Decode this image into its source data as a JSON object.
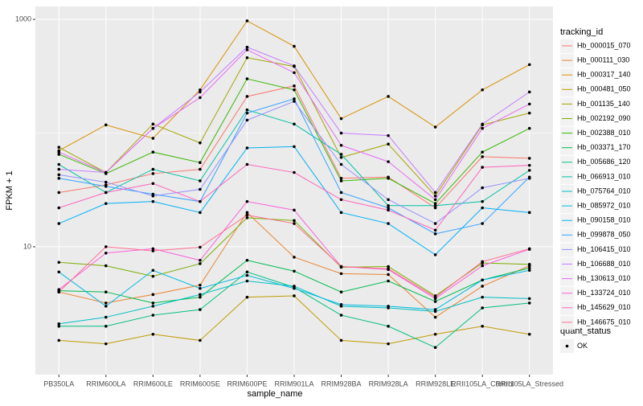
{
  "chart_data": {
    "type": "line",
    "x_label": "sample_name",
    "y_label": "FPKM + 1",
    "log_y": true,
    "grid": true,
    "categories": [
      "PB350LA",
      "RRIM600LA",
      "RRIM600LE",
      "RRIM600SE",
      "RRIM600PE",
      "RRIM901LA",
      "RRIM928BA",
      "RRIM928LA",
      "RRIM928LE",
      "RRII105LA_Control",
      "RRII105LA_Stressed"
    ],
    "ylim": [
      0.75,
      1300
    ],
    "yticks": [
      10,
      1000
    ],
    "legend_title": "tracking_id",
    "point_legend_title": "quant_status",
    "point_legend_label": "OK",
    "point_color": "#000000",
    "series": [
      {
        "name": "Hb_000015_070",
        "color": "#F8766D",
        "values": [
          30,
          35,
          44,
          48,
          210,
          260,
          40,
          41,
          22,
          62,
          60
        ]
      },
      {
        "name": "Hb_000111_030",
        "color": "#EA8331",
        "values": [
          4.0,
          3.2,
          3.8,
          4.6,
          20,
          8.1,
          5.8,
          5.7,
          2.4,
          4.5,
          6.8
        ]
      },
      {
        "name": "Hb_000317_140",
        "color": "#D89000",
        "values": [
          70,
          118,
          90,
          240,
          970,
          580,
          134,
          210,
          113,
          240,
          400
        ]
      },
      {
        "name": "Hb_000481_050",
        "color": "#C09B00",
        "values": [
          1.5,
          1.4,
          1.7,
          1.5,
          3.6,
          3.7,
          1.5,
          1.4,
          1.7,
          2.0,
          1.7
        ]
      },
      {
        "name": "Hb_001135_140",
        "color": "#A3A500",
        "values": [
          75,
          45,
          120,
          82,
          460,
          385,
          61,
          80,
          28,
          118,
          150
        ]
      },
      {
        "name": "Hb_002192_090",
        "color": "#7CAE00",
        "values": [
          7.3,
          6.8,
          5.5,
          7.1,
          18,
          17,
          6.6,
          6.7,
          3.7,
          7.2,
          7.0
        ]
      },
      {
        "name": "Hb_002388_010",
        "color": "#39B600",
        "values": [
          65,
          44,
          68,
          55,
          300,
          240,
          38,
          40,
          24,
          68,
          110
        ]
      },
      {
        "name": "Hb_003371_170",
        "color": "#00BB4E",
        "values": [
          4.1,
          4.0,
          3.2,
          3.6,
          7.6,
          6.1,
          4.0,
          5.0,
          3.3,
          5.1,
          6.5
        ]
      },
      {
        "name": "Hb_005686_120",
        "color": "#00BF7D",
        "values": [
          2.0,
          2.0,
          2.5,
          2.8,
          6.0,
          4.4,
          2.5,
          2.0,
          1.3,
          2.9,
          3.2
        ]
      },
      {
        "name": "Hb_066913_010",
        "color": "#00C1A3",
        "values": [
          53,
          30,
          48,
          38,
          160,
          120,
          65,
          23,
          23,
          25,
          47
        ]
      },
      {
        "name": "Hb_075764_010",
        "color": "#00BFC4",
        "values": [
          2.1,
          2.4,
          3.0,
          3.8,
          5.0,
          4.5,
          3.0,
          2.9,
          2.7,
          3.6,
          3.5
        ]
      },
      {
        "name": "Hb_085972_010",
        "color": "#00BAE0",
        "values": [
          6.0,
          3.0,
          6.2,
          4.3,
          5.6,
          4.3,
          3.1,
          3.0,
          2.8,
          5.1,
          6.2
        ]
      },
      {
        "name": "Hb_090158_010",
        "color": "#00B0F6",
        "values": [
          16,
          24,
          25,
          20,
          74,
          76,
          20,
          16,
          8.5,
          22,
          20
        ]
      },
      {
        "name": "Hb_099878_050",
        "color": "#35A2FF",
        "values": [
          40,
          34,
          29,
          25,
          150,
          200,
          30,
          22,
          13,
          16,
          41
        ]
      },
      {
        "name": "Hb_106415_010",
        "color": "#9590FF",
        "values": [
          43,
          37,
          28,
          32,
          130,
          190,
          53,
          26,
          16,
          33,
          40
        ]
      },
      {
        "name": "Hb_106688_010",
        "color": "#C77CFF",
        "values": [
          48,
          45,
          110,
          230,
          570,
          390,
          100,
          95,
          30,
          120,
          230
        ]
      },
      {
        "name": "Hb_130613_010",
        "color": "#E76BF3",
        "values": [
          68,
          45,
          110,
          205,
          540,
          340,
          78,
          56,
          26,
          110,
          180
        ]
      },
      {
        "name": "Hb_133724_010",
        "color": "#FA62DB",
        "values": [
          4.2,
          8.8,
          9.6,
          7.6,
          25,
          21,
          6.7,
          6.3,
          3.5,
          6.8,
          9.5
        ]
      },
      {
        "name": "Hb_145629_010",
        "color": "#FF62BC",
        "values": [
          22,
          30,
          36,
          25,
          53,
          45,
          26,
          21,
          14,
          50,
          52
        ]
      },
      {
        "name": "Hb_146675_010",
        "color": "#FF6C90",
        "values": [
          4.0,
          10,
          9.2,
          9.9,
          19,
          16,
          6.7,
          6.4,
          3.6,
          7.4,
          9.6
        ]
      }
    ]
  }
}
